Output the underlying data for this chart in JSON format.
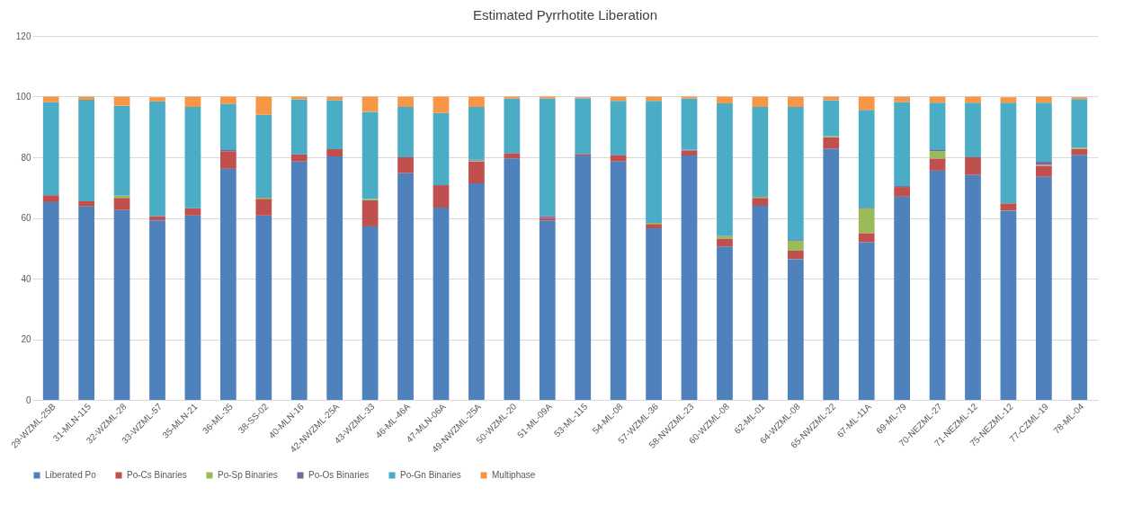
{
  "chart_data": {
    "type": "bar",
    "title": "Estimated Pyrrhotite Liberation",
    "stacked": true,
    "categories": [
      "29-WZML-25B",
      "31-MLN-115",
      "32-WZML-28",
      "33-WZML-57",
      "35-MLN-21",
      "36-ML-35",
      "38-SS-02",
      "40-MLN-16",
      "42-NWZML-25A",
      "43-WZML-33",
      "46-ML-46A",
      "47-MLN-06A",
      "49-NWZML-25A",
      "50-WZML-20",
      "51-ML-09A",
      "53-ML-115",
      "54-ML-08",
      "57-WZML-36",
      "58-NWZML-23",
      "60-WZML-08",
      "62-ML-01",
      "64-WZML-08",
      "65-NWZML-22",
      "67-ML-11A",
      "69-ML-79",
      "70-NEZML-27",
      "71-NEZML-12",
      "75-NEZML-12",
      "77-CZML-19",
      "78-ML-04"
    ],
    "series": [
      {
        "name": "Liberated Po",
        "color": "#4f81bd",
        "values": [
          65.2,
          63.8,
          62.6,
          59.2,
          60.8,
          76.2,
          60.8,
          78.6,
          80.3,
          57.2,
          74.8,
          63.4,
          71.4,
          79.6,
          59.2,
          80.6,
          78.6,
          56.6,
          80.6,
          50.6,
          64.0,
          46.4,
          82.8,
          52.0,
          67.0,
          75.6,
          74.2,
          62.4,
          73.6,
          80.8
        ]
      },
      {
        "name": "Po-Cs Binaries",
        "color": "#c0504d",
        "values": [
          2.3,
          1.7,
          4.0,
          1.4,
          2.4,
          5.8,
          5.5,
          2.4,
          2.4,
          8.6,
          5.2,
          7.4,
          7.2,
          1.6,
          0.8,
          0.5,
          2.0,
          1.4,
          1.6,
          2.6,
          2.6,
          2.8,
          3.8,
          3.0,
          3.2,
          4.0,
          5.8,
          2.4,
          3.6,
          2.0
        ]
      },
      {
        "name": "Po-Sp Binaries",
        "color": "#9bbb59",
        "values": [
          0,
          0,
          0.7,
          null,
          0,
          0,
          0.4,
          0,
          0,
          0.4,
          0,
          0,
          0.3,
          0,
          0,
          0,
          0,
          0.4,
          0,
          0.8,
          0.4,
          3.2,
          0.3,
          8.2,
          0,
          2.4,
          0,
          0,
          0.3,
          0.4
        ]
      },
      {
        "name": "Po-Os Binaries",
        "color": "#8064a2",
        "values": [
          0,
          0,
          0,
          0,
          0,
          0.4,
          0,
          0,
          0,
          0,
          0,
          0,
          0.3,
          0.2,
          0.6,
          null,
          0.2,
          0,
          0.3,
          0,
          0,
          0.3,
          0,
          0.2,
          0.3,
          0.4,
          0,
          null,
          1.0,
          null
        ]
      },
      {
        "name": "Po-Gn Binaries",
        "color": "#4bacc6",
        "values": [
          30.7,
          33.5,
          29.7,
          37.8,
          33.4,
          15.2,
          27.3,
          18.1,
          16.1,
          28.8,
          16.6,
          23.8,
          17.4,
          18.0,
          38.8,
          18.4,
          17.8,
          40.2,
          16.9,
          43.8,
          29.6,
          43.9,
          11.9,
          32.2,
          27.7,
          15.6,
          18.0,
          33.2,
          19.5,
          16.0
        ]
      },
      {
        "name": "Multiphase",
        "color": "#f79646",
        "values": [
          1.8,
          1.0,
          3.0,
          1.4,
          3.4,
          2.4,
          6.0,
          0.9,
          1.2,
          5.0,
          3.4,
          5.4,
          3.4,
          0.6,
          0.6,
          0.3,
          1.4,
          1.4,
          0.6,
          2.2,
          3.4,
          3.4,
          1.2,
          4.4,
          1.8,
          2.0,
          2.0,
          1.8,
          2.0,
          0.6
        ]
      }
    ],
    "ylim": [
      0,
      120
    ],
    "yticks": [
      0,
      20,
      40,
      60,
      80,
      100,
      120
    ],
    "grid": "y",
    "legend": "bottom"
  }
}
